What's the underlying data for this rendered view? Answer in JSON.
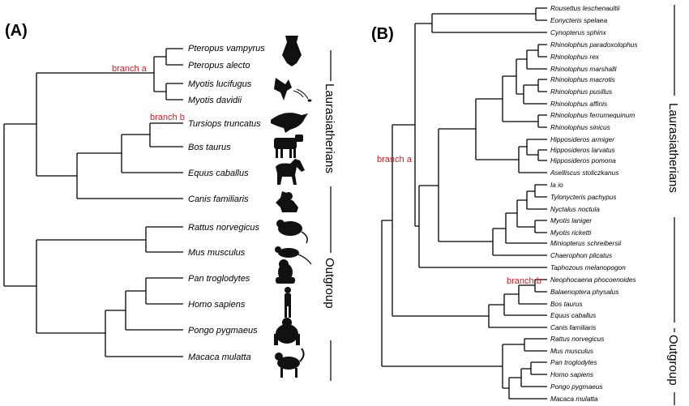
{
  "panel_a": {
    "label": "(A)",
    "taxa": [
      "Pteropus vampyrus",
      "Pteropus alecto",
      "Myotis lucifugus",
      "Myotis davidii",
      "Tursiops truncatus",
      "Bos taurus",
      "Equus caballus",
      "Canis familiaris",
      "Rattus norvegicus",
      "Mus musculus",
      "Pan troglodytes",
      "Homo sapiens",
      "Pongo pygmaeus",
      "Macaca mulatta"
    ],
    "icons": [
      "bat-icon",
      "flying-bat-icon",
      "dolphin-icon",
      "cow-icon",
      "horse-icon",
      "dog-icon",
      "rat-icon",
      "mouse-icon",
      "chimpanzee-icon",
      "human-icon",
      "orangutan-icon",
      "macaque-icon"
    ],
    "branch_a": "branch a",
    "branch_b": "branch b",
    "group_laurasiatherians": "Laurasiatherians",
    "group_outgroup": "Outgroup"
  },
  "panel_b": {
    "label": "(B)",
    "taxa": [
      "Rousettus leschenaultii",
      "Eonycteris spelaea",
      "Cynopterus sphinx",
      "Rhinolophus paradoxolophus",
      "Rhinolophus rex",
      "Rhinolophus marshalli",
      "Rhinolophus macrotis",
      "Rhinolophus pusillus",
      "Rhinolophus affinis",
      "Rhinolophus ferrumequinum",
      "Rhinolophus sinicus",
      "Hipposideros armiger",
      "Hipposideros larvatus",
      "Hipposideros pomona",
      "Aselliscus stoliczkanus",
      "Ia io",
      "Tylonycteris pachypus",
      "Nyctalus noctula",
      "Myotis laniger",
      "Myotis ricketti",
      "Miniopterus schreibersii",
      "Chaerophon plicatus",
      "Taphozous melanopogon",
      "Neophocaena phocoenoides",
      "Balaenoptera physalus",
      "Bos taurus",
      "Equus caballus",
      "Canis familiaris",
      "Rattus norvegicus",
      "Mus musculus",
      "Pan troglodytes",
      "Homo sapiens",
      "Pongo pygmaeus",
      "Macaca mulatta"
    ],
    "branch_a": "branch a",
    "branch_b": "branch b",
    "group_laurasiatherians": "Laurasiatherians",
    "group_outgroup": "Outgroup"
  },
  "colors": {
    "branch_label": "#d71920",
    "line": "#000000"
  }
}
